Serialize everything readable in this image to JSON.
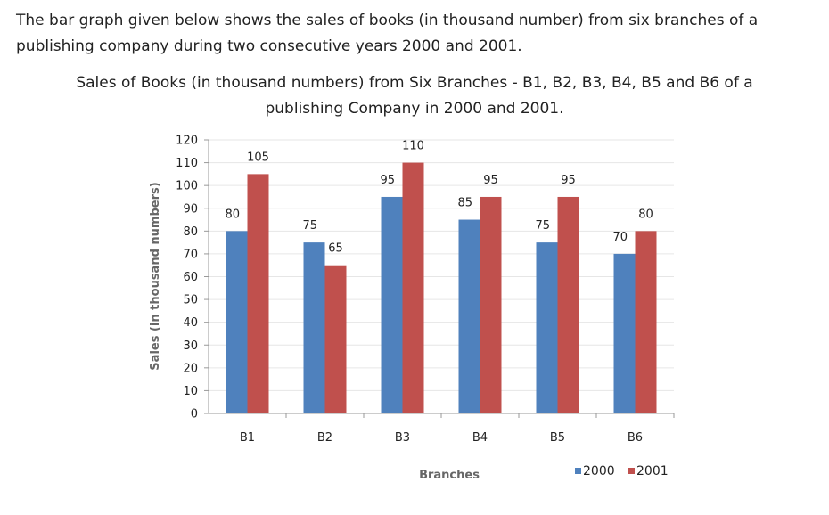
{
  "intro_text": "The bar graph given below shows the sales of books (in thousand number) from six branches of a publishing company during two consecutive years 2000 and 2001.",
  "chart_data": {
    "type": "bar",
    "title_line1": "Sales of Books (in thousand numbers) from Six Branches - B1, B2, B3, B4, B5 and B6 of a",
    "title_line2": "publishing Company in 2000 and 2001.",
    "xlabel": "Branches",
    "ylabel": "Sales (in thousand numbers)",
    "categories": [
      "B1",
      "B2",
      "B3",
      "B4",
      "B5",
      "B6"
    ],
    "ylim": [
      0,
      120
    ],
    "yticks": [
      0,
      10,
      20,
      30,
      40,
      50,
      60,
      70,
      80,
      90,
      100,
      110,
      120
    ],
    "grid": true,
    "legend_position": "bottom-right",
    "series": [
      {
        "name": "2000",
        "color": "#4f81bd",
        "values": [
          80,
          75,
          95,
          85,
          75,
          70
        ]
      },
      {
        "name": "2001",
        "color": "#c0504d",
        "values": [
          105,
          65,
          110,
          95,
          95,
          80
        ]
      }
    ]
  }
}
